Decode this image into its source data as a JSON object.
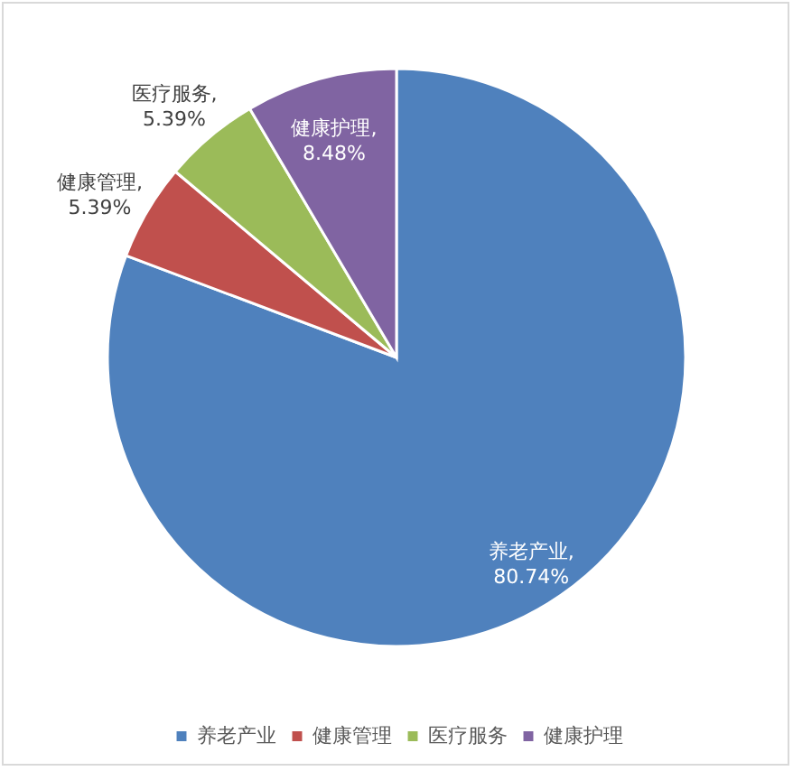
{
  "chart_data": {
    "type": "pie",
    "categories": [
      "养老产业",
      "健康管理",
      "医疗服务",
      "健康护理"
    ],
    "values": [
      80.74,
      5.39,
      5.39,
      8.48
    ],
    "colors": [
      "#4f81bd",
      "#c0504d",
      "#9bbb59",
      "#8064a2"
    ],
    "value_labels": [
      "养老产业,\n80.74%",
      "健康管理,\n5.39%",
      "医疗服务,\n5.39%",
      "健康护理,\n8.48%"
    ],
    "legend": "bottom"
  }
}
